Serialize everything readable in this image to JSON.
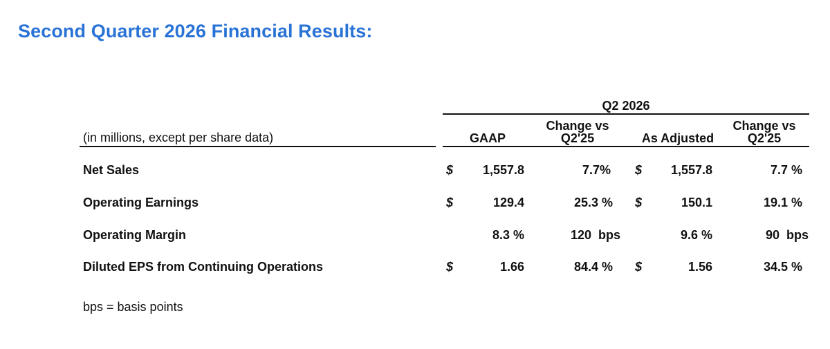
{
  "title": "Second Quarter 2026 Financial Results:",
  "table": {
    "period_header": "Q2 2026",
    "units_note": "(in millions, except per share data)",
    "columns": {
      "gaap": "GAAP",
      "gaap_change": [
        "Change vs",
        "Q2'25"
      ],
      "adjusted": "As Adjusted",
      "adjusted_change": [
        "Change vs",
        "Q2'25"
      ]
    },
    "currency_symbol": "$",
    "rows": [
      {
        "label": "Net Sales",
        "gaap_dollar": "$",
        "gaap": "1,557.8",
        "gaap_change": "7.7%",
        "adj_dollar": "$",
        "adjusted": "1,557.8",
        "adjusted_change": "7.7 %"
      },
      {
        "label": "Operating Earnings",
        "gaap_dollar": "$",
        "gaap": "129.4",
        "gaap_change": "25.3 %",
        "adj_dollar": "$",
        "adjusted": "150.1",
        "adjusted_change": "19.1 %"
      },
      {
        "label": "Operating Margin",
        "gaap_dollar": "",
        "gaap": "8.3 %",
        "gaap_change": "120  bps",
        "adj_dollar": "",
        "adjusted": "9.6 %",
        "adjusted_change": "90  bps"
      },
      {
        "label": "Diluted EPS from Continuing Operations",
        "gaap_dollar": "$",
        "gaap": "1.66",
        "gaap_change": "84.4 %",
        "adj_dollar": "$",
        "adjusted": "1.56",
        "adjusted_change": "34.5 %"
      }
    ]
  },
  "footnote": "bps = basis points"
}
